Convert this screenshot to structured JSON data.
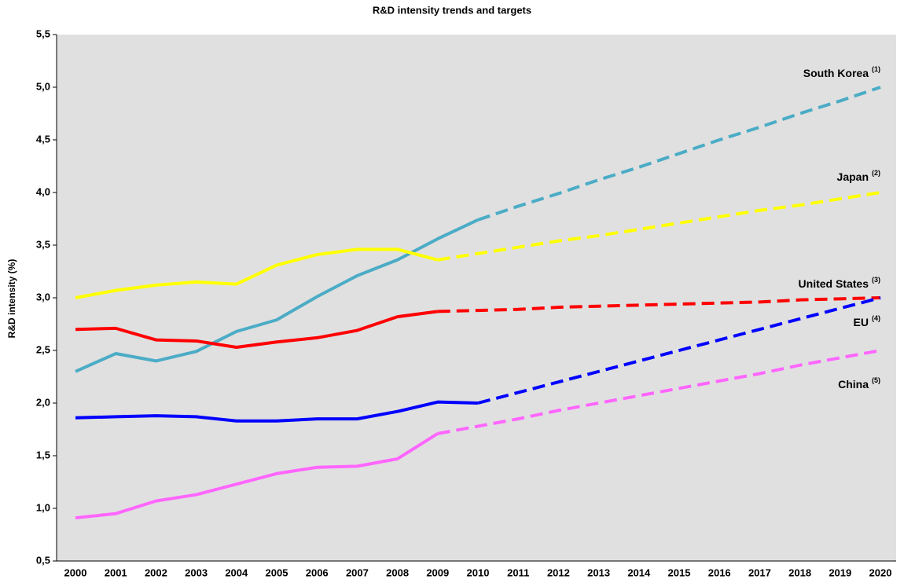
{
  "chart_data": {
    "type": "line",
    "title": "R&D intensity trends and targets",
    "y_label": "R&D intensity (%)",
    "categories": [
      "2000",
      "2001",
      "2002",
      "2003",
      "2004",
      "2005",
      "2006",
      "2007",
      "2008",
      "2009",
      "2010",
      "2011",
      "2012",
      "2013",
      "2014",
      "2015",
      "2016",
      "2017",
      "2018",
      "2019",
      "2020"
    ],
    "ylim": [
      0.5,
      5.5
    ],
    "yticks": [
      {
        "value": 0.5,
        "label": "0,5"
      },
      {
        "value": 1.0,
        "label": "1,0"
      },
      {
        "value": 1.5,
        "label": "1,5"
      },
      {
        "value": 2.0,
        "label": "2,0"
      },
      {
        "value": 2.5,
        "label": "2,5"
      },
      {
        "value": 3.0,
        "label": "3,0"
      },
      {
        "value": 3.5,
        "label": "3,5"
      },
      {
        "value": 4.0,
        "label": "4,0"
      },
      {
        "value": 4.5,
        "label": "4,5"
      },
      {
        "value": 5.0,
        "label": "5,0"
      },
      {
        "value": 5.5,
        "label": "5,5"
      }
    ],
    "grid": false,
    "background": "#e0e0e0",
    "series": [
      {
        "name": "South Korea",
        "note": "(1)",
        "color": "#4bacc6",
        "values": [
          2.3,
          2.47,
          2.4,
          2.49,
          2.68,
          2.79,
          3.01,
          3.21,
          3.36,
          3.56,
          3.74,
          null,
          null,
          null,
          null,
          null,
          null,
          null,
          null,
          null,
          null
        ],
        "target_values": [
          null,
          null,
          null,
          null,
          null,
          null,
          null,
          null,
          null,
          null,
          3.74,
          3.87,
          3.99,
          4.12,
          4.24,
          4.37,
          4.5,
          4.62,
          4.75,
          4.87,
          5.0
        ]
      },
      {
        "name": "Japan",
        "note": "(2)",
        "color": "#ffff00",
        "values": [
          3.0,
          3.07,
          3.12,
          3.15,
          3.13,
          3.31,
          3.41,
          3.46,
          3.46,
          3.36,
          null,
          null,
          null,
          null,
          null,
          null,
          null,
          null,
          null,
          null,
          null
        ],
        "target_values": [
          null,
          null,
          null,
          null,
          null,
          null,
          null,
          null,
          null,
          3.36,
          3.42,
          3.48,
          3.54,
          3.59,
          3.65,
          3.71,
          3.77,
          3.83,
          3.88,
          3.94,
          4.0
        ]
      },
      {
        "name": "United States",
        "note": "(3)",
        "color": "#ff0000",
        "values": [
          2.7,
          2.71,
          2.6,
          2.59,
          2.53,
          2.58,
          2.62,
          2.69,
          2.82,
          2.87,
          null,
          null,
          null,
          null,
          null,
          null,
          null,
          null,
          null,
          null,
          null
        ],
        "target_values": [
          null,
          null,
          null,
          null,
          null,
          null,
          null,
          null,
          null,
          2.87,
          2.88,
          2.89,
          2.91,
          2.92,
          2.93,
          2.94,
          2.95,
          2.96,
          2.98,
          2.99,
          3.0
        ]
      },
      {
        "name": "EU",
        "note": "(4)",
        "color": "#0000ff",
        "values": [
          1.86,
          1.87,
          1.88,
          1.87,
          1.83,
          1.83,
          1.85,
          1.85,
          1.92,
          2.01,
          2.0,
          null,
          null,
          null,
          null,
          null,
          null,
          null,
          null,
          null,
          null
        ],
        "target_values": [
          null,
          null,
          null,
          null,
          null,
          null,
          null,
          null,
          null,
          null,
          2.0,
          2.1,
          2.2,
          2.3,
          2.4,
          2.5,
          2.6,
          2.7,
          2.8,
          2.9,
          3.0
        ]
      },
      {
        "name": "China",
        "note": "(5)",
        "color": "#ff66ff",
        "values": [
          0.91,
          0.95,
          1.07,
          1.13,
          1.23,
          1.33,
          1.39,
          1.4,
          1.47,
          1.71,
          null,
          null,
          null,
          null,
          null,
          null,
          null,
          null,
          null,
          null,
          null
        ],
        "target_values": [
          null,
          null,
          null,
          null,
          null,
          null,
          null,
          null,
          null,
          1.71,
          1.78,
          1.85,
          1.93,
          2.0,
          2.07,
          2.14,
          2.21,
          2.28,
          2.36,
          2.43,
          2.5
        ]
      }
    ]
  }
}
